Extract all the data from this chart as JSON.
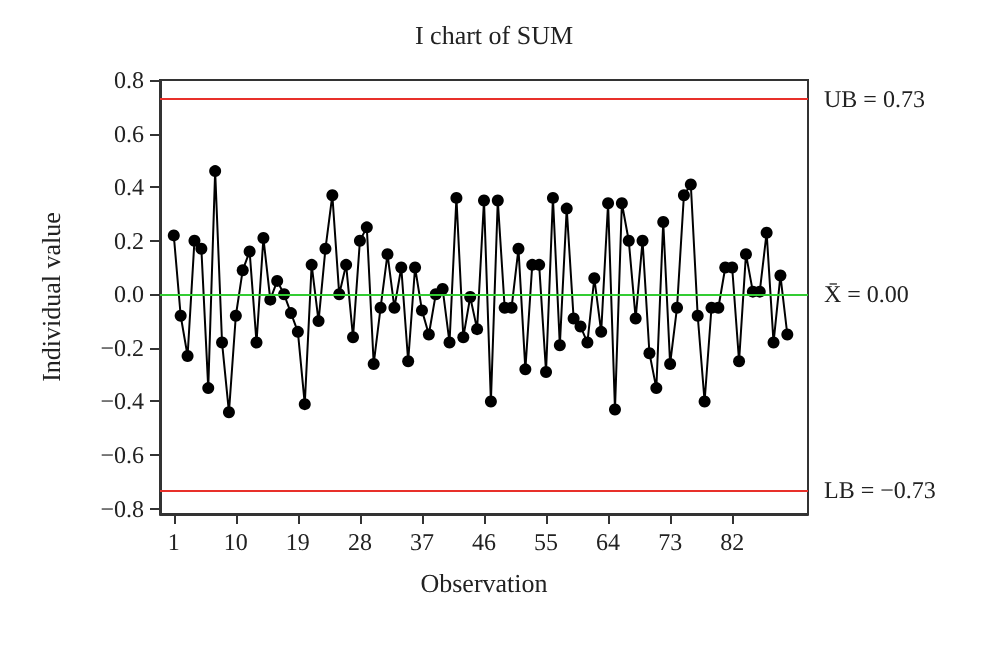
{
  "chart_data": {
    "type": "line",
    "title": "I chart of SUM",
    "xlabel": "Observation",
    "ylabel": "Individual value",
    "x": [
      1,
      2,
      3,
      4,
      5,
      6,
      7,
      8,
      9,
      10,
      11,
      12,
      13,
      14,
      15,
      16,
      17,
      18,
      19,
      20,
      21,
      22,
      23,
      24,
      25,
      26,
      27,
      28,
      29,
      30,
      31,
      32,
      33,
      34,
      35,
      36,
      37,
      38,
      39,
      40,
      41,
      42,
      43,
      44,
      45,
      46,
      47,
      48,
      49,
      50,
      51,
      52,
      53,
      54,
      55,
      56,
      57,
      58,
      59,
      60,
      61,
      62,
      63,
      64,
      65,
      66,
      67,
      68,
      69,
      70,
      71,
      72,
      73,
      74,
      75,
      76,
      77,
      78,
      79,
      80,
      81,
      82,
      83,
      84,
      85,
      86,
      87,
      88,
      89,
      90
    ],
    "series": [
      {
        "color": "#000000",
        "values": [
          0.22,
          -0.08,
          -0.23,
          0.2,
          0.17,
          -0.35,
          0.46,
          -0.18,
          -0.44,
          -0.08,
          0.09,
          0.16,
          -0.18,
          0.21,
          -0.02,
          0.05,
          0.0,
          -0.07,
          -0.14,
          -0.41,
          0.11,
          -0.1,
          0.17,
          0.37,
          0.0,
          0.11,
          -0.16,
          0.2,
          0.25,
          -0.26,
          -0.05,
          0.15,
          -0.05,
          0.1,
          -0.25,
          0.1,
          -0.06,
          -0.15,
          0.0,
          0.02,
          -0.18,
          0.36,
          -0.16,
          -0.01,
          -0.13,
          0.35,
          -0.4,
          0.35,
          -0.05,
          -0.05,
          0.17,
          -0.28,
          0.11,
          0.11,
          -0.29,
          0.36,
          -0.19,
          0.32,
          -0.09,
          -0.12,
          -0.18,
          0.06,
          -0.14,
          0.34,
          -0.43,
          0.34,
          0.2,
          -0.09,
          0.2,
          -0.22,
          -0.35,
          0.27,
          -0.26,
          -0.05,
          0.37,
          0.41,
          -0.08,
          -0.4,
          -0.05,
          -0.05,
          0.1,
          0.1,
          -0.25,
          0.15,
          0.01,
          0.01,
          0.23,
          -0.18,
          0.07,
          -0.15
        ]
      }
    ],
    "xlim": [
      -1,
      93
    ],
    "xticks": [
      1,
      10,
      19,
      28,
      37,
      46,
      55,
      64,
      73,
      82
    ],
    "ylim": [
      -0.82,
      0.8
    ],
    "yticks": [
      {
        "value": -0.8,
        "label": "−0.8"
      },
      {
        "value": -0.6,
        "label": "−0.6"
      },
      {
        "value": -0.4,
        "label": "−0.4"
      },
      {
        "value": -0.2,
        "label": "−0.2"
      },
      {
        "value": 0,
        "label": "0.0"
      },
      {
        "value": 0.2,
        "label": "0.2"
      },
      {
        "value": 0.4,
        "label": "0.4"
      },
      {
        "value": 0.6,
        "label": "0.6"
      },
      {
        "value": 0.8,
        "label": "0.8"
      }
    ],
    "ref_lines": [
      {
        "axis": "y",
        "value": 0.73,
        "label": "UB = 0.73",
        "color": "#e8302a"
      },
      {
        "axis": "y",
        "value": 0,
        "label": "X̄ = 0.00",
        "color": "#33cc33"
      },
      {
        "axis": "y",
        "value": -0.73,
        "label": "LB = −0.73",
        "color": "#e8302a"
      }
    ],
    "marker": "circle",
    "line_style": "solid"
  }
}
